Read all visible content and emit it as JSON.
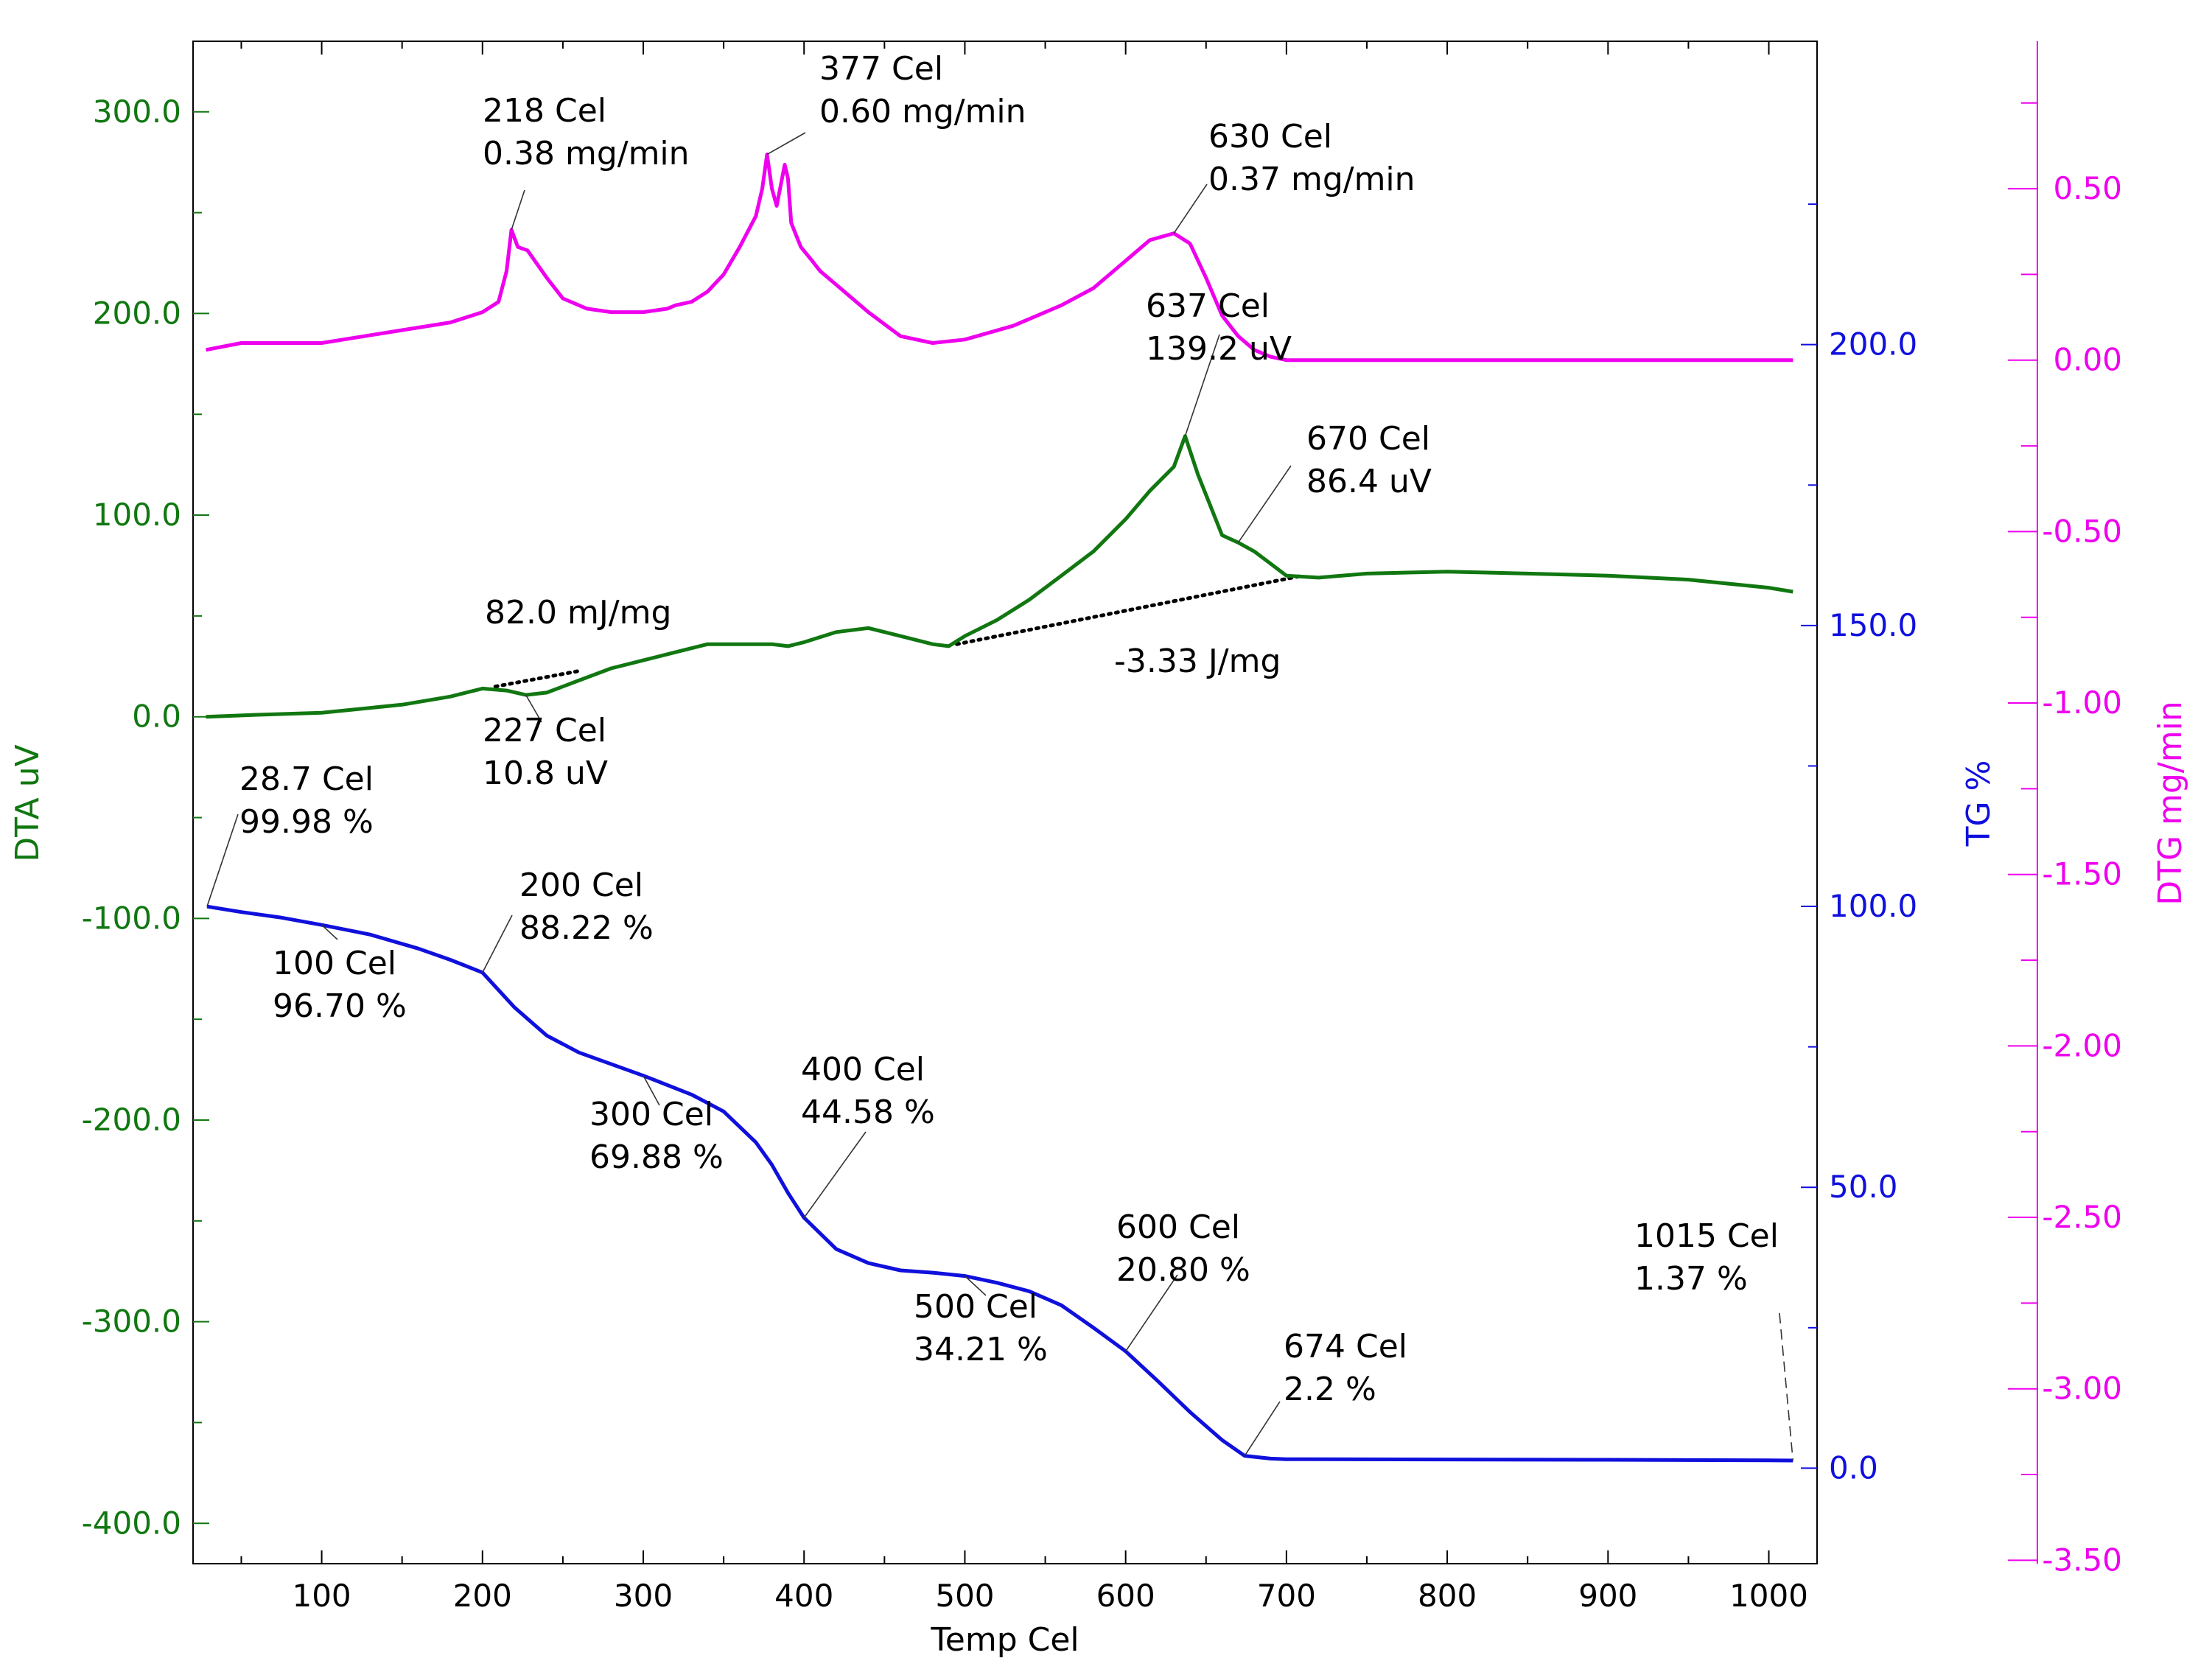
{
  "chart_data": {
    "type": "line",
    "title": "",
    "xlabel": "Temp  Cel",
    "xlim": [
      20,
      1030
    ],
    "xticks": [
      100,
      200,
      300,
      400,
      500,
      600,
      700,
      800,
      900,
      1000
    ],
    "axes": {
      "dta": {
        "label": "DTA  uV",
        "color": "#117711",
        "lim": [
          -420,
          335
        ],
        "ticks": [
          300,
          200,
          100,
          0,
          -100,
          -200,
          -300,
          -400
        ],
        "tick_labels": [
          "300.0",
          "200.0",
          "100.0",
          "0.0",
          "-100.0",
          "-200.0",
          "-300.0",
          "-400.0"
        ]
      },
      "tg": {
        "label": "TG  %",
        "color": "#1010dd",
        "lim": [
          -17,
          254
        ],
        "ticks": [
          200,
          150,
          100,
          50,
          0
        ],
        "tick_labels": [
          "200.0",
          "150.0",
          "100.0",
          "50.0",
          "0.0"
        ]
      },
      "dtg": {
        "label": "DTG  mg/min",
        "color": "#ee00ee",
        "lim": [
          -3.51,
          0.93
        ],
        "ticks": [
          0.5,
          0.0,
          -0.5,
          -1.0,
          -1.5,
          -2.0,
          -2.5,
          -3.0,
          -3.5
        ],
        "tick_labels": [
          "0.50",
          "0.00",
          "-0.50",
          "-1.00",
          "-1.50",
          "-2.00",
          "-2.50",
          "-3.00",
          "-3.50"
        ]
      }
    },
    "series": [
      {
        "name": "DTG",
        "axis": "dtg",
        "color": "#ee00ee",
        "points": [
          [
            28,
            0.03
          ],
          [
            50,
            0.05
          ],
          [
            80,
            0.05
          ],
          [
            100,
            0.05
          ],
          [
            140,
            0.08
          ],
          [
            180,
            0.11
          ],
          [
            200,
            0.14
          ],
          [
            210,
            0.17
          ],
          [
            215,
            0.26
          ],
          [
            218,
            0.38
          ],
          [
            222,
            0.33
          ],
          [
            228,
            0.32
          ],
          [
            240,
            0.24
          ],
          [
            250,
            0.18
          ],
          [
            265,
            0.15
          ],
          [
            280,
            0.14
          ],
          [
            300,
            0.14
          ],
          [
            315,
            0.15
          ],
          [
            320,
            0.16
          ],
          [
            330,
            0.17
          ],
          [
            340,
            0.2
          ],
          [
            350,
            0.25
          ],
          [
            360,
            0.33
          ],
          [
            370,
            0.42
          ],
          [
            374,
            0.5
          ],
          [
            377,
            0.6
          ],
          [
            380,
            0.5
          ],
          [
            383,
            0.45
          ],
          [
            388,
            0.57
          ],
          [
            390,
            0.53
          ],
          [
            392,
            0.4
          ],
          [
            398,
            0.33
          ],
          [
            405,
            0.29
          ],
          [
            410,
            0.26
          ],
          [
            420,
            0.22
          ],
          [
            440,
            0.14
          ],
          [
            460,
            0.07
          ],
          [
            480,
            0.05
          ],
          [
            500,
            0.06
          ],
          [
            530,
            0.1
          ],
          [
            560,
            0.16
          ],
          [
            580,
            0.21
          ],
          [
            600,
            0.29
          ],
          [
            615,
            0.35
          ],
          [
            630,
            0.37
          ],
          [
            640,
            0.34
          ],
          [
            650,
            0.24
          ],
          [
            660,
            0.13
          ],
          [
            670,
            0.07
          ],
          [
            680,
            0.03
          ],
          [
            690,
            0.01
          ],
          [
            700,
            0.0
          ],
          [
            800,
            0.0
          ],
          [
            900,
            0.0
          ],
          [
            1000,
            0.0
          ],
          [
            1015,
            0.0
          ]
        ]
      },
      {
        "name": "DTA",
        "axis": "dta",
        "color": "#117711",
        "points": [
          [
            28,
            0
          ],
          [
            60,
            1
          ],
          [
            100,
            2
          ],
          [
            150,
            6
          ],
          [
            180,
            10
          ],
          [
            200,
            14
          ],
          [
            215,
            13
          ],
          [
            227,
            10.8
          ],
          [
            240,
            12
          ],
          [
            260,
            18
          ],
          [
            280,
            24
          ],
          [
            300,
            28
          ],
          [
            320,
            32
          ],
          [
            340,
            36
          ],
          [
            360,
            36
          ],
          [
            380,
            36
          ],
          [
            390,
            35
          ],
          [
            400,
            37
          ],
          [
            420,
            42
          ],
          [
            440,
            44
          ],
          [
            460,
            40
          ],
          [
            480,
            36
          ],
          [
            490,
            35
          ],
          [
            500,
            40
          ],
          [
            520,
            48
          ],
          [
            540,
            58
          ],
          [
            560,
            70
          ],
          [
            580,
            82
          ],
          [
            600,
            98
          ],
          [
            615,
            112
          ],
          [
            630,
            124
          ],
          [
            637,
            139.2
          ],
          [
            645,
            120
          ],
          [
            655,
            100
          ],
          [
            660,
            90
          ],
          [
            670,
            86.4
          ],
          [
            680,
            82
          ],
          [
            690,
            76
          ],
          [
            700,
            70
          ],
          [
            720,
            69
          ],
          [
            750,
            71
          ],
          [
            800,
            72
          ],
          [
            850,
            71
          ],
          [
            900,
            70
          ],
          [
            950,
            68
          ],
          [
            1000,
            64
          ],
          [
            1015,
            62
          ]
        ]
      },
      {
        "name": "TG",
        "axis": "tg",
        "color": "#1010dd",
        "points": [
          [
            28.7,
            99.98
          ],
          [
            50,
            99.0
          ],
          [
            75,
            98.0
          ],
          [
            100,
            96.7
          ],
          [
            130,
            95.0
          ],
          [
            160,
            92.5
          ],
          [
            180,
            90.5
          ],
          [
            200,
            88.22
          ],
          [
            220,
            82.0
          ],
          [
            240,
            77.0
          ],
          [
            260,
            74.0
          ],
          [
            300,
            69.88
          ],
          [
            330,
            66.5
          ],
          [
            350,
            63.5
          ],
          [
            370,
            58.0
          ],
          [
            380,
            54.0
          ],
          [
            390,
            49.0
          ],
          [
            400,
            44.58
          ],
          [
            420,
            39.0
          ],
          [
            440,
            36.5
          ],
          [
            460,
            35.2
          ],
          [
            480,
            34.8
          ],
          [
            500,
            34.21
          ],
          [
            520,
            33.0
          ],
          [
            540,
            31.5
          ],
          [
            560,
            29.0
          ],
          [
            580,
            25.0
          ],
          [
            600,
            20.8
          ],
          [
            620,
            15.5
          ],
          [
            640,
            10.0
          ],
          [
            660,
            5.0
          ],
          [
            674,
            2.2
          ],
          [
            690,
            1.7
          ],
          [
            700,
            1.6
          ],
          [
            800,
            1.55
          ],
          [
            900,
            1.5
          ],
          [
            1000,
            1.4
          ],
          [
            1015,
            1.37
          ]
        ]
      }
    ],
    "baselines": [
      {
        "axis": "dta",
        "from": [
          208,
          15
        ],
        "to": [
          262,
          23
        ]
      },
      {
        "axis": "dta",
        "from": [
          495,
          36
        ],
        "to": [
          710,
          70
        ]
      }
    ],
    "annotations": [
      {
        "id": "dtg-218",
        "axis": "dtg",
        "point": [
          218,
          0.38
        ],
        "lines": [
          "218 Cel",
          "0.38 mg/min"
        ]
      },
      {
        "id": "dtg-377",
        "axis": "dtg",
        "point": [
          377,
          0.6
        ],
        "lines": [
          "377 Cel",
          "0.60 mg/min"
        ]
      },
      {
        "id": "dtg-630",
        "axis": "dtg",
        "point": [
          630,
          0.37
        ],
        "lines": [
          "630 Cel",
          "0.37 mg/min"
        ]
      },
      {
        "id": "dta-637",
        "axis": "dta",
        "point": [
          637,
          139.2
        ],
        "lines": [
          "637 Cel",
          "139.2 uV"
        ]
      },
      {
        "id": "dta-670",
        "axis": "dta",
        "point": [
          670,
          86.4
        ],
        "lines": [
          "670 Cel",
          "86.4 uV"
        ]
      },
      {
        "id": "dta-227",
        "axis": "dta",
        "point": [
          227,
          10.8
        ],
        "lines": [
          "227 Cel",
          "10.8 uV"
        ]
      },
      {
        "id": "tg-28",
        "axis": "tg",
        "point": [
          28.7,
          99.98
        ],
        "lines": [
          "28.7 Cel",
          "99.98 %"
        ]
      },
      {
        "id": "tg-100",
        "axis": "tg",
        "point": [
          100,
          96.7
        ],
        "lines": [
          "100 Cel",
          "96.70 %"
        ]
      },
      {
        "id": "tg-200",
        "axis": "tg",
        "point": [
          200,
          88.22
        ],
        "lines": [
          "200 Cel",
          "88.22 %"
        ]
      },
      {
        "id": "tg-300",
        "axis": "tg",
        "point": [
          300,
          69.88
        ],
        "lines": [
          "300 Cel",
          "69.88 %"
        ]
      },
      {
        "id": "tg-400",
        "axis": "tg",
        "point": [
          400,
          44.58
        ],
        "lines": [
          "400 Cel",
          "44.58 %"
        ]
      },
      {
        "id": "tg-500",
        "axis": "tg",
        "point": [
          500,
          34.21
        ],
        "lines": [
          "500 Cel",
          "34.21 %"
        ]
      },
      {
        "id": "tg-600",
        "axis": "tg",
        "point": [
          600,
          20.8
        ],
        "lines": [
          "600 Cel",
          "20.80 %"
        ]
      },
      {
        "id": "tg-674",
        "axis": "tg",
        "point": [
          674,
          2.2
        ],
        "lines": [
          "674 Cel",
          "2.2 %"
        ]
      },
      {
        "id": "tg-1015",
        "axis": "tg",
        "point": [
          1015,
          1.37
        ],
        "lines": [
          "1015 Cel",
          "1.37 %"
        ]
      }
    ],
    "area_labels": [
      {
        "id": "peak-area-1",
        "text": "82.0 mJ/mg"
      },
      {
        "id": "peak-area-2",
        "text": "-3.33 J/mg"
      }
    ]
  }
}
